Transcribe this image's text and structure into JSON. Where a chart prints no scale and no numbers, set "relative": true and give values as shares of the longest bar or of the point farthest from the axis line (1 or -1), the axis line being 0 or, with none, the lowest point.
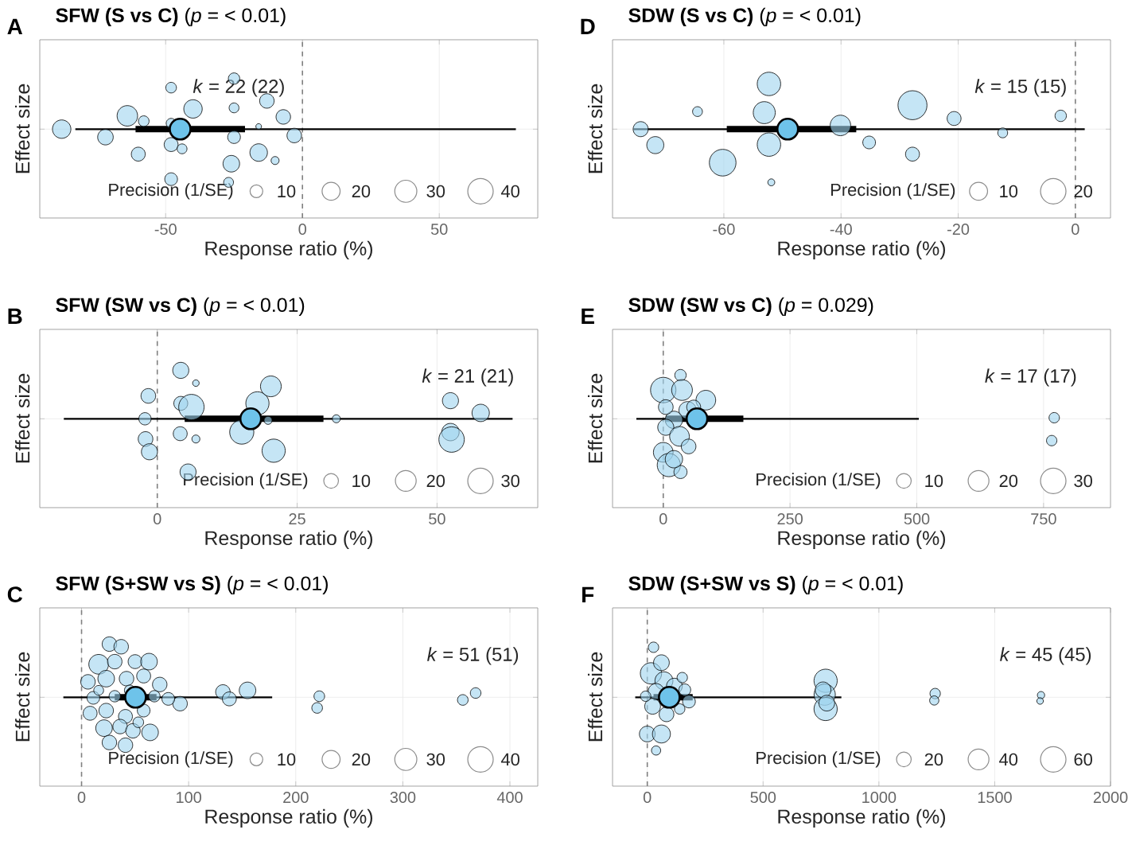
{
  "chart_data": [
    {
      "type": "bubble",
      "title": "**SFW (S vs C)** (*p* = < 0.01)",
      "xlabel": "Response ratio (%)",
      "ylabel": "Effect size",
      "legend_title": "Precision (1/SE)",
      "size_legend": [
        10,
        20,
        30,
        40
      ],
      "relative": true,
      "xlim": [
        -96,
        86
      ],
      "xticks": [
        -50,
        0,
        50
      ],
      "grid": true,
      "tick_labels": "x",
      "ref_lines": [
        {
          "axis": "x",
          "value": 0,
          "color": "#808080",
          "line_style": "dashed"
        }
      ],
      "annotations": [
        "A",
        "*k* = 22 (22)"
      ],
      "series": [
        {
          "color": "#9fd3ef",
          "x": [
            -88,
            -72,
            -64,
            -58,
            -60,
            -48,
            -48,
            -48,
            -44,
            -48,
            -40,
            -25,
            -25,
            -25,
            -26,
            -27,
            -13,
            -16,
            -10,
            -16,
            -7,
            -3
          ],
          "values": [
            0,
            -0.15,
            0.25,
            0.15,
            -0.47,
            0.78,
            0.11,
            -0.29,
            -0.37,
            -0.94,
            0.38,
            0.95,
            0.4,
            -0.15,
            -0.65,
            -1.0,
            0.53,
            -0.44,
            -0.59,
            0.05,
            0.23,
            -0.12
          ],
          "sizes": [
            21,
            15,
            26,
            7,
            12,
            7,
            6,
            12,
            6,
            10,
            21,
            8,
            6,
            10,
            17,
            6,
            13,
            19,
            4,
            2,
            13,
            13
          ]
        },
        {
          "type": "line",
          "color": "#000000",
          "x": [
            -83,
            78
          ],
          "values": [
            0,
            0
          ]
        },
        {
          "type": "scatter",
          "color": "#6ec3ea",
          "x": [
            -44.7
          ],
          "values": [
            0
          ],
          "xerrors": [
            [
              -61,
              -21
            ]
          ]
        }
      ]
    },
    {
      "type": "bubble",
      "title": "**SDW (S vs C)** (*p* = < 0.01)",
      "xlabel": "Response ratio (%)",
      "ylabel": "Effect size",
      "legend_title": "Precision (1/SE)",
      "size_legend": [
        10,
        20
      ],
      "relative": true,
      "xlim": [
        -79,
        6
      ],
      "xticks": [
        -60,
        -40,
        -20,
        0
      ],
      "grid": true,
      "tick_labels": "x",
      "ref_lines": [
        {
          "axis": "x",
          "value": 0,
          "color": "#808080",
          "line_style": "dashed"
        }
      ],
      "annotations": [
        "D",
        "*k* = 15 (15)"
      ],
      "series": [
        {
          "color": "#9fd3ef",
          "x": [
            -74.2,
            -71.7,
            -64.5,
            -60.2,
            -52.3,
            -53.1,
            -52.3,
            -51.9,
            -40.1,
            -35.2,
            -27.8,
            -27.8,
            -20.7,
            -12.4,
            -2.5
          ],
          "values": [
            0,
            -0.3,
            0.33,
            -0.63,
            0.85,
            0.31,
            -0.29,
            -1.0,
            0.07,
            -0.25,
            0.45,
            -0.47,
            0.2,
            -0.07,
            0.25
          ],
          "sizes": [
            7,
            9,
            3,
            22,
            17,
            15,
            17,
            1.5,
            13,
            5,
            26,
            6,
            6,
            3,
            4
          ]
        },
        {
          "type": "line",
          "color": "#000000",
          "x": [
            -75.4,
            1.6
          ],
          "values": [
            0,
            0
          ]
        },
        {
          "type": "scatter",
          "color": "#6ec3ea",
          "x": [
            -49.1
          ],
          "values": [
            0
          ],
          "xerrors": [
            [
              -59.5,
              -37.4
            ]
          ]
        }
      ]
    },
    {
      "type": "bubble",
      "title": "**SFW (SW vs C)** (*p* = < 0.01)",
      "xlabel": "Response ratio (%)",
      "ylabel": "Effect size",
      "legend_title": "Precision (1/SE)",
      "size_legend": [
        10,
        20,
        30
      ],
      "relative": true,
      "xlim": [
        -21,
        68
      ],
      "xticks": [
        0,
        25,
        50
      ],
      "grid": true,
      "tick_labels": "x",
      "ref_lines": [
        {
          "axis": "x",
          "value": 0,
          "color": "#808080",
          "line_style": "dashed"
        }
      ],
      "annotations": [
        "B",
        "*k* = 21 (21)"
      ],
      "series": [
        {
          "color": "#9fd3ef",
          "x": [
            -1.6,
            -2.2,
            -2.1,
            -1.4,
            4.2,
            6.9,
            4.2,
            6.1,
            4.1,
            6.9,
            5.5,
            17.9,
            20.3,
            15.1,
            20.8,
            19.8,
            32,
            52.4,
            57.8,
            52.4,
            52.6
          ],
          "values": [
            0.43,
            0,
            -0.38,
            -0.62,
            0.91,
            0.67,
            0.29,
            0.22,
            -0.28,
            -0.38,
            -1.0,
            0.29,
            0.61,
            -0.25,
            -0.6,
            -0.03,
            0,
            0.34,
            0.11,
            -0.25,
            -0.39
          ],
          "sizes": [
            10,
            7,
            10,
            12,
            12,
            2,
            9,
            30,
            9,
            3,
            12,
            25,
            20,
            27,
            25,
            3,
            3,
            12,
            14,
            14,
            30
          ]
        },
        {
          "type": "line",
          "color": "#000000",
          "x": [
            -16.7,
            63.5
          ],
          "values": [
            0,
            0
          ]
        },
        {
          "type": "scatter",
          "color": "#6ec3ea",
          "x": [
            16.7
          ],
          "values": [
            0
          ],
          "xerrors": [
            [
              4.9,
              29.7
            ]
          ]
        }
      ]
    },
    {
      "type": "bubble",
      "title": "**SDW (SW vs C)** (*p* = 0.029)",
      "xlabel": "Response ratio (%)",
      "ylabel": "Effect size",
      "legend_title": "Precision (1/SE)",
      "size_legend": [
        10,
        20,
        30
      ],
      "relative": true,
      "xlim": [
        -100,
        882
      ],
      "xticks": [
        0,
        250,
        500,
        750
      ],
      "grid": true,
      "tick_labels": "x",
      "ref_lines": [
        {
          "axis": "x",
          "value": 0,
          "color": "#808080",
          "line_style": "dashed"
        }
      ],
      "annotations": [
        "E",
        "*k* = 17 (17)"
      ],
      "series": [
        {
          "color": "#9fd3ef",
          "x": [
            0,
            34,
            37,
            84,
            48,
            21,
            5,
            32,
            50,
            0,
            11,
            34,
            60,
            5,
            21,
            771,
            766
          ],
          "values": [
            0.54,
            0.82,
            0.54,
            0.35,
            0.16,
            -0.02,
            -0.16,
            -0.33,
            -0.52,
            -0.63,
            -0.87,
            -1.0,
            0.22,
            0.22,
            -0.76,
            0.02,
            -0.41
          ],
          "sizes": [
            30,
            6,
            20,
            18,
            14,
            14,
            12,
            18,
            10,
            18,
            25,
            8,
            9,
            10,
            14,
            5,
            5
          ]
        },
        {
          "type": "line",
          "color": "#000000",
          "x": [
            -53,
            504
          ],
          "values": [
            0,
            0
          ]
        },
        {
          "type": "scatter",
          "color": "#6ec3ea",
          "x": [
            66.5
          ],
          "values": [
            0
          ],
          "xerrors": [
            [
              5,
              158
            ]
          ]
        }
      ]
    },
    {
      "type": "bubble",
      "title": "**SFW (S+SW vs S)** (*p* = < 0.01)",
      "xlabel": "Response ratio (%)",
      "ylabel": "Effect size",
      "legend_title": "Precision (1/SE)",
      "size_legend": [
        10,
        20,
        30,
        40
      ],
      "relative": true,
      "xlim": [
        -39,
        426
      ],
      "xticks": [
        0,
        100,
        200,
        300,
        400
      ],
      "grid": true,
      "tick_labels": "x",
      "ref_lines": [
        {
          "axis": "x",
          "value": 0,
          "color": "#808080",
          "line_style": "dashed"
        }
      ],
      "annotations": [
        "C",
        "*k* = 51 (51)"
      ],
      "series": [
        {
          "color": "#9fd3ef",
          "x": [
            132,
            138,
            155,
            92,
            81,
            222,
            220,
            356,
            368,
            26,
            37,
            16,
            31,
            50,
            63,
            6,
            23,
            42,
            58,
            73,
            11,
            31,
            68,
            8,
            23,
            41,
            58,
            21,
            36,
            48,
            64,
            26,
            41,
            53,
            45,
            16
          ],
          "values": [
            0.1,
            -0.03,
            0.13,
            -0.12,
            -0.03,
            0.02,
            -0.2,
            -0.05,
            0.08,
            1.0,
            0.95,
            0.62,
            0.67,
            0.67,
            0.67,
            0.29,
            0.35,
            0.35,
            0.4,
            0.24,
            -0.01,
            0.02,
            0.02,
            -0.3,
            -0.25,
            -0.36,
            -0.25,
            -0.58,
            -0.55,
            -0.63,
            -0.66,
            -0.85,
            -0.9,
            -0.47,
            0.13,
            0.13
          ],
          "sizes": [
            13,
            12,
            17,
            13,
            10,
            7,
            7,
            7,
            7,
            13,
            13,
            24,
            13,
            12,
            17,
            13,
            17,
            13,
            12,
            13,
            10,
            8,
            8,
            12,
            13,
            12,
            10,
            17,
            13,
            13,
            17,
            13,
            13,
            7,
            7,
            6
          ]
        },
        {
          "type": "line",
          "color": "#000000",
          "x": [
            -17,
            178
          ],
          "values": [
            0,
            0
          ]
        },
        {
          "type": "scatter",
          "color": "#6ec3ea",
          "x": [
            50.4
          ],
          "values": [
            0
          ],
          "xerrors": [
            [
              31,
              70
            ]
          ]
        }
      ]
    },
    {
      "type": "bubble",
      "title": "**SDW (S+SW vs S)** (*p* = < 0.01)",
      "xlabel": "Response ratio (%)",
      "ylabel": "Effect size",
      "legend_title": "Precision (1/SE)",
      "size_legend": [
        20,
        40,
        60
      ],
      "relative": true,
      "xlim": [
        -150,
        2000
      ],
      "xticks": [
        0,
        500,
        1000,
        1500,
        2000
      ],
      "grid": true,
      "tick_labels": "x",
      "ref_lines": [
        {
          "axis": "x",
          "value": 0,
          "color": "#808080",
          "line_style": "dashed"
        }
      ],
      "annotations": [
        "F",
        "*k* = 45 (45)"
      ],
      "series": [
        {
          "color": "#9fd3ef",
          "x": [
            770,
            766,
            770,
            759,
            775,
            1243,
            1239,
            1700,
            1696,
            27,
            16,
            61,
            72,
            117,
            38,
            180,
            23,
            83,
            0,
            61,
            38,
            162,
            151,
            -7,
            140
          ],
          "values": [
            0.31,
            0.05,
            -0.22,
            0.14,
            -0.11,
            0.07,
            -0.06,
            0.04,
            -0.07,
            0.94,
            0.45,
            0.65,
            0.31,
            0.21,
            0.11,
            -0.08,
            -0.17,
            -0.32,
            -0.69,
            -0.69,
            -1.0,
            0.14,
            0.37,
            0.02,
            -0.22
          ],
          "sizes": [
            50,
            42,
            50,
            23,
            23,
            10,
            8,
            5,
            4,
            10,
            42,
            23,
            30,
            23,
            23,
            15,
            23,
            20,
            23,
            30,
            8,
            13,
            10,
            10,
            10
          ]
        },
        {
          "type": "line",
          "color": "#000000",
          "x": [
            -52,
            838
          ],
          "values": [
            0,
            0
          ]
        },
        {
          "type": "scatter",
          "color": "#6ec3ea",
          "x": [
            95
          ],
          "values": [
            0
          ],
          "xerrors": [
            [
              27,
              196
            ]
          ]
        }
      ]
    }
  ]
}
